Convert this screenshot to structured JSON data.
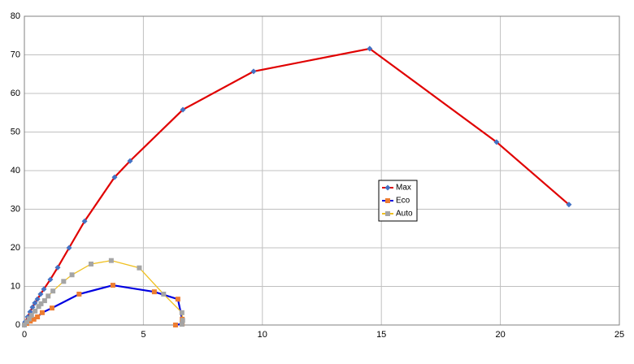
{
  "chart_data": {
    "type": "scatter-line",
    "xlim": [
      0,
      25
    ],
    "xticks": [
      0,
      5,
      10,
      15,
      20,
      25
    ],
    "ylim": [
      0,
      80
    ],
    "yticks": [
      0,
      10,
      20,
      30,
      40,
      50,
      60,
      70,
      80
    ],
    "grid": true,
    "series": [
      {
        "name": "Max",
        "color": "#e00000",
        "marker_color": "#4472c4",
        "marker": "diamond",
        "x": [
          0,
          0.03,
          0.14,
          0.24,
          0.34,
          0.44,
          0.55,
          0.68,
          0.82,
          1.09,
          1.4,
          1.88,
          2.53,
          3.79,
          4.44,
          6.66,
          9.63,
          14.51,
          19.84,
          22.88
        ],
        "values": [
          0,
          0.8,
          2.1,
          3.4,
          4.6,
          5.7,
          6.7,
          8.0,
          9.3,
          11.8,
          14.9,
          20.0,
          26.9,
          38.3,
          42.5,
          55.8,
          65.7,
          71.6,
          47.4,
          31.2
        ]
      },
      {
        "name": "Eco",
        "color": "#0000e0",
        "marker_color": "#ed7d31",
        "marker": "square",
        "x": [
          0,
          0.1,
          0.25,
          0.4,
          0.55,
          0.75,
          1.16,
          2.3,
          3.72,
          5.46,
          6.45,
          6.63,
          6.63,
          6.35
        ],
        "values": [
          0,
          0.4,
          1.0,
          1.5,
          2.1,
          3.2,
          4.4,
          8.0,
          10.3,
          8.6,
          6.7,
          1.5,
          0.3,
          0
        ]
      },
      {
        "name": "Auto",
        "color": "#f0c020",
        "marker_color": "#a5a5a5",
        "marker": "square",
        "x": [
          0,
          0.1,
          0.2,
          0.3,
          0.45,
          0.6,
          0.7,
          0.85,
          1.0,
          1.2,
          1.65,
          2.0,
          2.8,
          3.65,
          4.83,
          5.85,
          6.62,
          6.65,
          6.62
        ],
        "values": [
          0,
          0.8,
          1.6,
          2.5,
          3.6,
          4.8,
          5.5,
          6.3,
          7.5,
          8.8,
          11.3,
          13.0,
          15.8,
          16.7,
          14.8,
          8.0,
          3.2,
          1.2,
          0.2
        ]
      }
    ]
  }
}
